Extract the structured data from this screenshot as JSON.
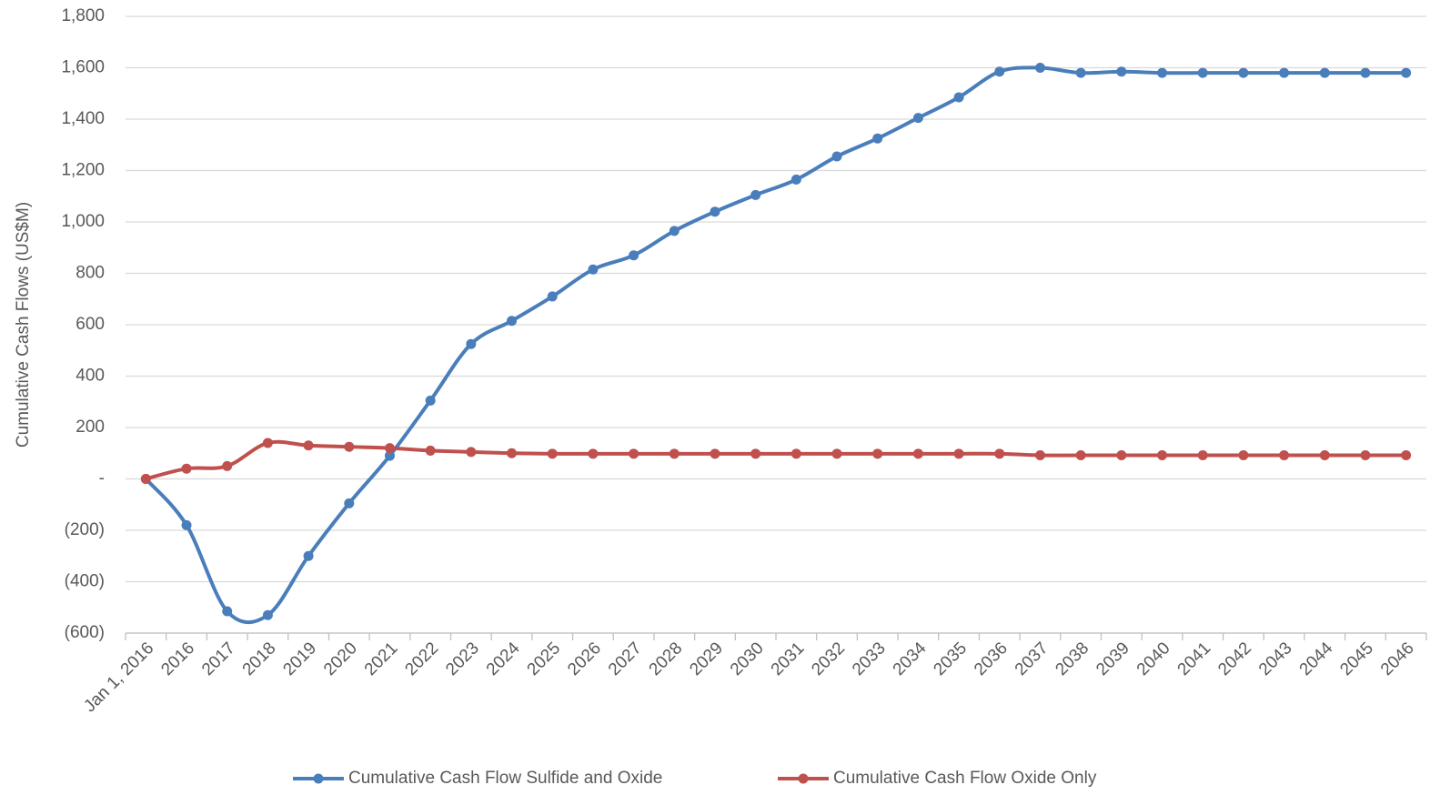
{
  "chart_data": {
    "type": "line",
    "y_label": "Cumulative Cash Flows (US$M)",
    "categories": [
      "Jan 1, 2016",
      "2016",
      "2017",
      "2018",
      "2019",
      "2020",
      "2021",
      "2022",
      "2023",
      "2024",
      "2025",
      "2026",
      "2027",
      "2028",
      "2029",
      "2030",
      "2031",
      "2032",
      "2033",
      "2034",
      "2035",
      "2036",
      "2037",
      "2038",
      "2039",
      "2040",
      "2041",
      "2042",
      "2043",
      "2044",
      "2045",
      "2046"
    ],
    "series": [
      {
        "name": "Cumulative Cash Flow Sulfide and Oxide",
        "color": "#4a7ebb",
        "values": [
          0,
          -180,
          -515,
          -530,
          -300,
          -95,
          90,
          305,
          525,
          615,
          710,
          815,
          870,
          965,
          1040,
          1105,
          1165,
          1255,
          1325,
          1405,
          1485,
          1585,
          1600,
          1580,
          1585,
          1580,
          1580,
          1580,
          1580,
          1580,
          1580,
          1580
        ]
      },
      {
        "name": "Cumulative Cash Flow Oxide Only",
        "color": "#c0504d",
        "values": [
          0,
          40,
          50,
          140,
          130,
          125,
          120,
          110,
          105,
          100,
          98,
          98,
          98,
          98,
          98,
          98,
          98,
          98,
          98,
          98,
          98,
          98,
          92,
          92,
          92,
          92,
          92,
          92,
          92,
          92,
          92,
          92
        ]
      }
    ],
    "ylim": [
      -600,
      1800
    ],
    "yticks": [
      {
        "value": -600,
        "label": "(600)"
      },
      {
        "value": -400,
        "label": "(400)"
      },
      {
        "value": -200,
        "label": "(200)"
      },
      {
        "value": 0,
        "label": "-"
      },
      200,
      400,
      600,
      800,
      {
        "value": 1000,
        "label": "1,000"
      },
      {
        "value": 1200,
        "label": "1,200"
      },
      {
        "value": 1400,
        "label": "1,400"
      },
      {
        "value": 1600,
        "label": "1,600"
      },
      {
        "value": 1800,
        "label": "1,800"
      }
    ],
    "grid": true,
    "smooth": true,
    "legend": "bottom"
  }
}
